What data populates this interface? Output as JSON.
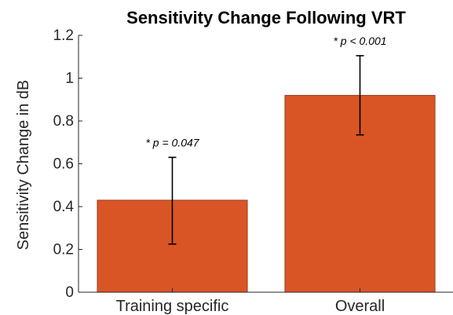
{
  "chart_data": {
    "type": "bar",
    "title": "Sensitivity Change Following VRT",
    "xlabel": "",
    "ylabel": "Sensitivity Change in dB",
    "ylim": [
      0,
      1.2
    ],
    "yticks": [
      0,
      0.2,
      0.4,
      0.6,
      0.8,
      1,
      1.2
    ],
    "ytick_labels": [
      "0",
      "0.2",
      "0.4",
      "0.6",
      "0.8",
      "1",
      "1.2"
    ],
    "categories": [
      "Training specific",
      "Overall"
    ],
    "values": [
      0.43,
      0.92
    ],
    "error_low": [
      0.225,
      0.735
    ],
    "error_high": [
      0.63,
      1.105
    ],
    "annotations": [
      "* p = 0.047",
      "* p < 0.001"
    ],
    "bar_color": "#D95525",
    "bar_edge_color": "#8B2E12",
    "grid": false
  }
}
